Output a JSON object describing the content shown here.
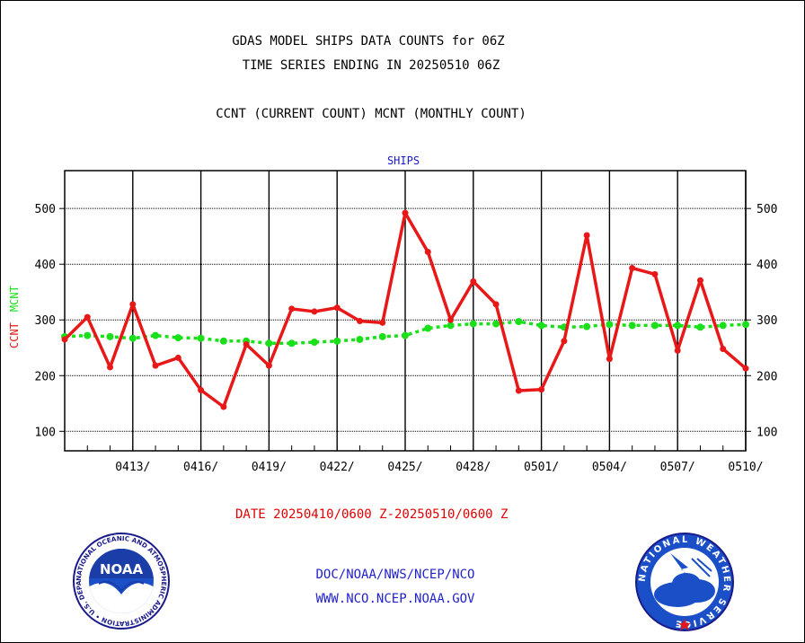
{
  "header": {
    "title_line1": "GDAS MODEL SHIPS DATA COUNTS for 06Z",
    "title_line2": "TIME SERIES ENDING IN 20250510 06Z",
    "subtitle": "CCNT (CURRENT COUNT) MCNT (MONTHLY COUNT)"
  },
  "footer": {
    "date_range": "DATE 20250410/0600 Z-20250510/0600 Z",
    "credit_line1": "DOC/NOAA/NWS/NCEP/NCO",
    "credit_line2": "WWW.NCO.NCEP.NOAA.GOV"
  },
  "logos": {
    "noaa_text": "NOAA",
    "noaa_ring_text": "NATIONAL OCEANIC AND ATMOSPHERIC ADMINISTRATION • U.S. DEPARTMENT OF COMMERCE •",
    "nws_ring_text": "NATIONAL WEATHER SERVICE"
  },
  "colors": {
    "ccnt": "#e81818",
    "mcnt": "#19e019",
    "panel_label": "#1a1acc",
    "date_text": "#e00000",
    "credit_text": "#2222cc"
  },
  "chart_data": {
    "type": "line",
    "panel_label": "SHIPS",
    "ylabel_ccnt": "CCNT",
    "ylabel_mcnt": "MCNT",
    "ylim": [
      65,
      568
    ],
    "yticks": [
      100,
      200,
      300,
      400,
      500
    ],
    "x_range": [
      0,
      30
    ],
    "xticks": [
      {
        "x": 3,
        "label": "0413/"
      },
      {
        "x": 6,
        "label": "0416/"
      },
      {
        "x": 9,
        "label": "0419/"
      },
      {
        "x": 12,
        "label": "0422/"
      },
      {
        "x": 15,
        "label": "0425/"
      },
      {
        "x": 18,
        "label": "0428/"
      },
      {
        "x": 21,
        "label": "0501/"
      },
      {
        "x": 24,
        "label": "0504/"
      },
      {
        "x": 27,
        "label": "0507/"
      },
      {
        "x": 30,
        "label": "0510/"
      }
    ],
    "grid": true,
    "series": [
      {
        "name": "CCNT",
        "style": "solid",
        "values": [
          265,
          305,
          215,
          328,
          218,
          232,
          174,
          144,
          256,
          218,
          320,
          315,
          322,
          298,
          295,
          492,
          422,
          300,
          369,
          328,
          173,
          175,
          262,
          452,
          230,
          393,
          382,
          245,
          371,
          248,
          213
        ]
      },
      {
        "name": "MCNT",
        "style": "dashed",
        "values": [
          270,
          272,
          270,
          267,
          272,
          268,
          267,
          262,
          262,
          258,
          258,
          260,
          262,
          265,
          270,
          272,
          285,
          290,
          293,
          293,
          297,
          290,
          287,
          288,
          292,
          290,
          290,
          290,
          287,
          290,
          292
        ]
      }
    ]
  }
}
